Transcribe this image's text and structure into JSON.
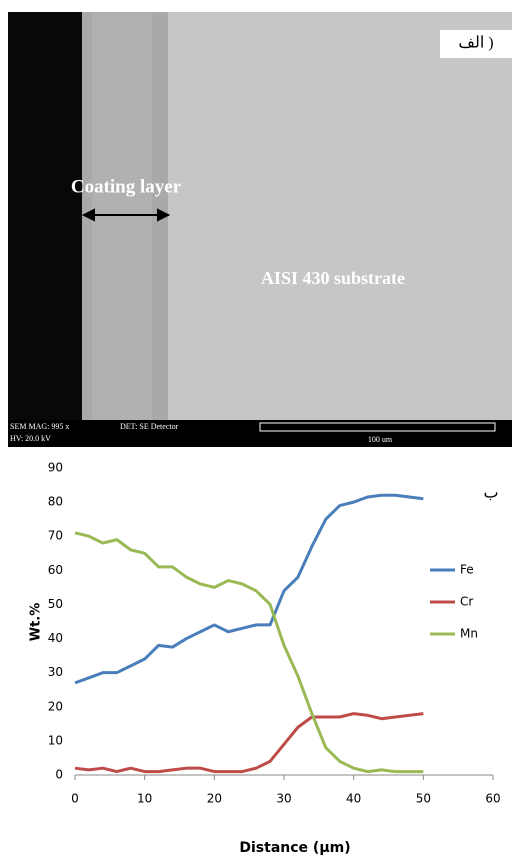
{
  "micrograph": {
    "panel_label": "الف )",
    "coating_label": "Coating layer",
    "substrate_label": "AISI 430 substrate",
    "magnification": "SEM MAG: 995 x",
    "detector": "DET: SE Detector",
    "voltage": "HV:  20.0 kV",
    "scale": "100 um"
  },
  "chart_data": {
    "type": "line",
    "panel_label": "ب",
    "xlabel": "Distance (µm)",
    "ylabel": "Wt.%",
    "x": [
      0,
      2,
      4,
      6,
      8,
      10,
      12,
      14,
      16,
      18,
      20,
      22,
      24,
      26,
      28,
      30,
      32,
      34,
      36,
      38,
      40,
      42,
      44,
      46,
      48,
      50
    ],
    "series": [
      {
        "name": "Fe",
        "color": "#4a7ebb",
        "values": [
          27,
          28.5,
          30,
          30,
          32,
          34,
          38,
          37.5,
          40,
          42,
          44,
          42,
          43,
          44,
          44,
          54,
          58,
          67,
          75,
          79,
          80,
          81.5,
          82,
          82,
          81.5,
          81
        ]
      },
      {
        "name": "Cr",
        "color": "#be4b48",
        "values": [
          2,
          1.5,
          2,
          1,
          2,
          1,
          1,
          1.5,
          2,
          2,
          1,
          1,
          1,
          2,
          4,
          9,
          14,
          17,
          17,
          17,
          18,
          17.5,
          16.5,
          17,
          17.5,
          18
        ]
      },
      {
        "name": "Mn",
        "color": "#98b954",
        "values": [
          71,
          70,
          68,
          69,
          66,
          65,
          61,
          61,
          58,
          56,
          55,
          57,
          56,
          54,
          50,
          38,
          29,
          18,
          8,
          4,
          2,
          1,
          1.5,
          1,
          1,
          1
        ]
      }
    ],
    "xlim": [
      0,
      60
    ],
    "xticks": [
      0,
      10,
      20,
      30,
      40,
      50,
      60
    ],
    "ylim": [
      0,
      90
    ],
    "yticks": [
      0,
      10,
      20,
      30,
      40,
      50,
      60,
      70,
      80,
      90
    ],
    "legend": "right"
  }
}
